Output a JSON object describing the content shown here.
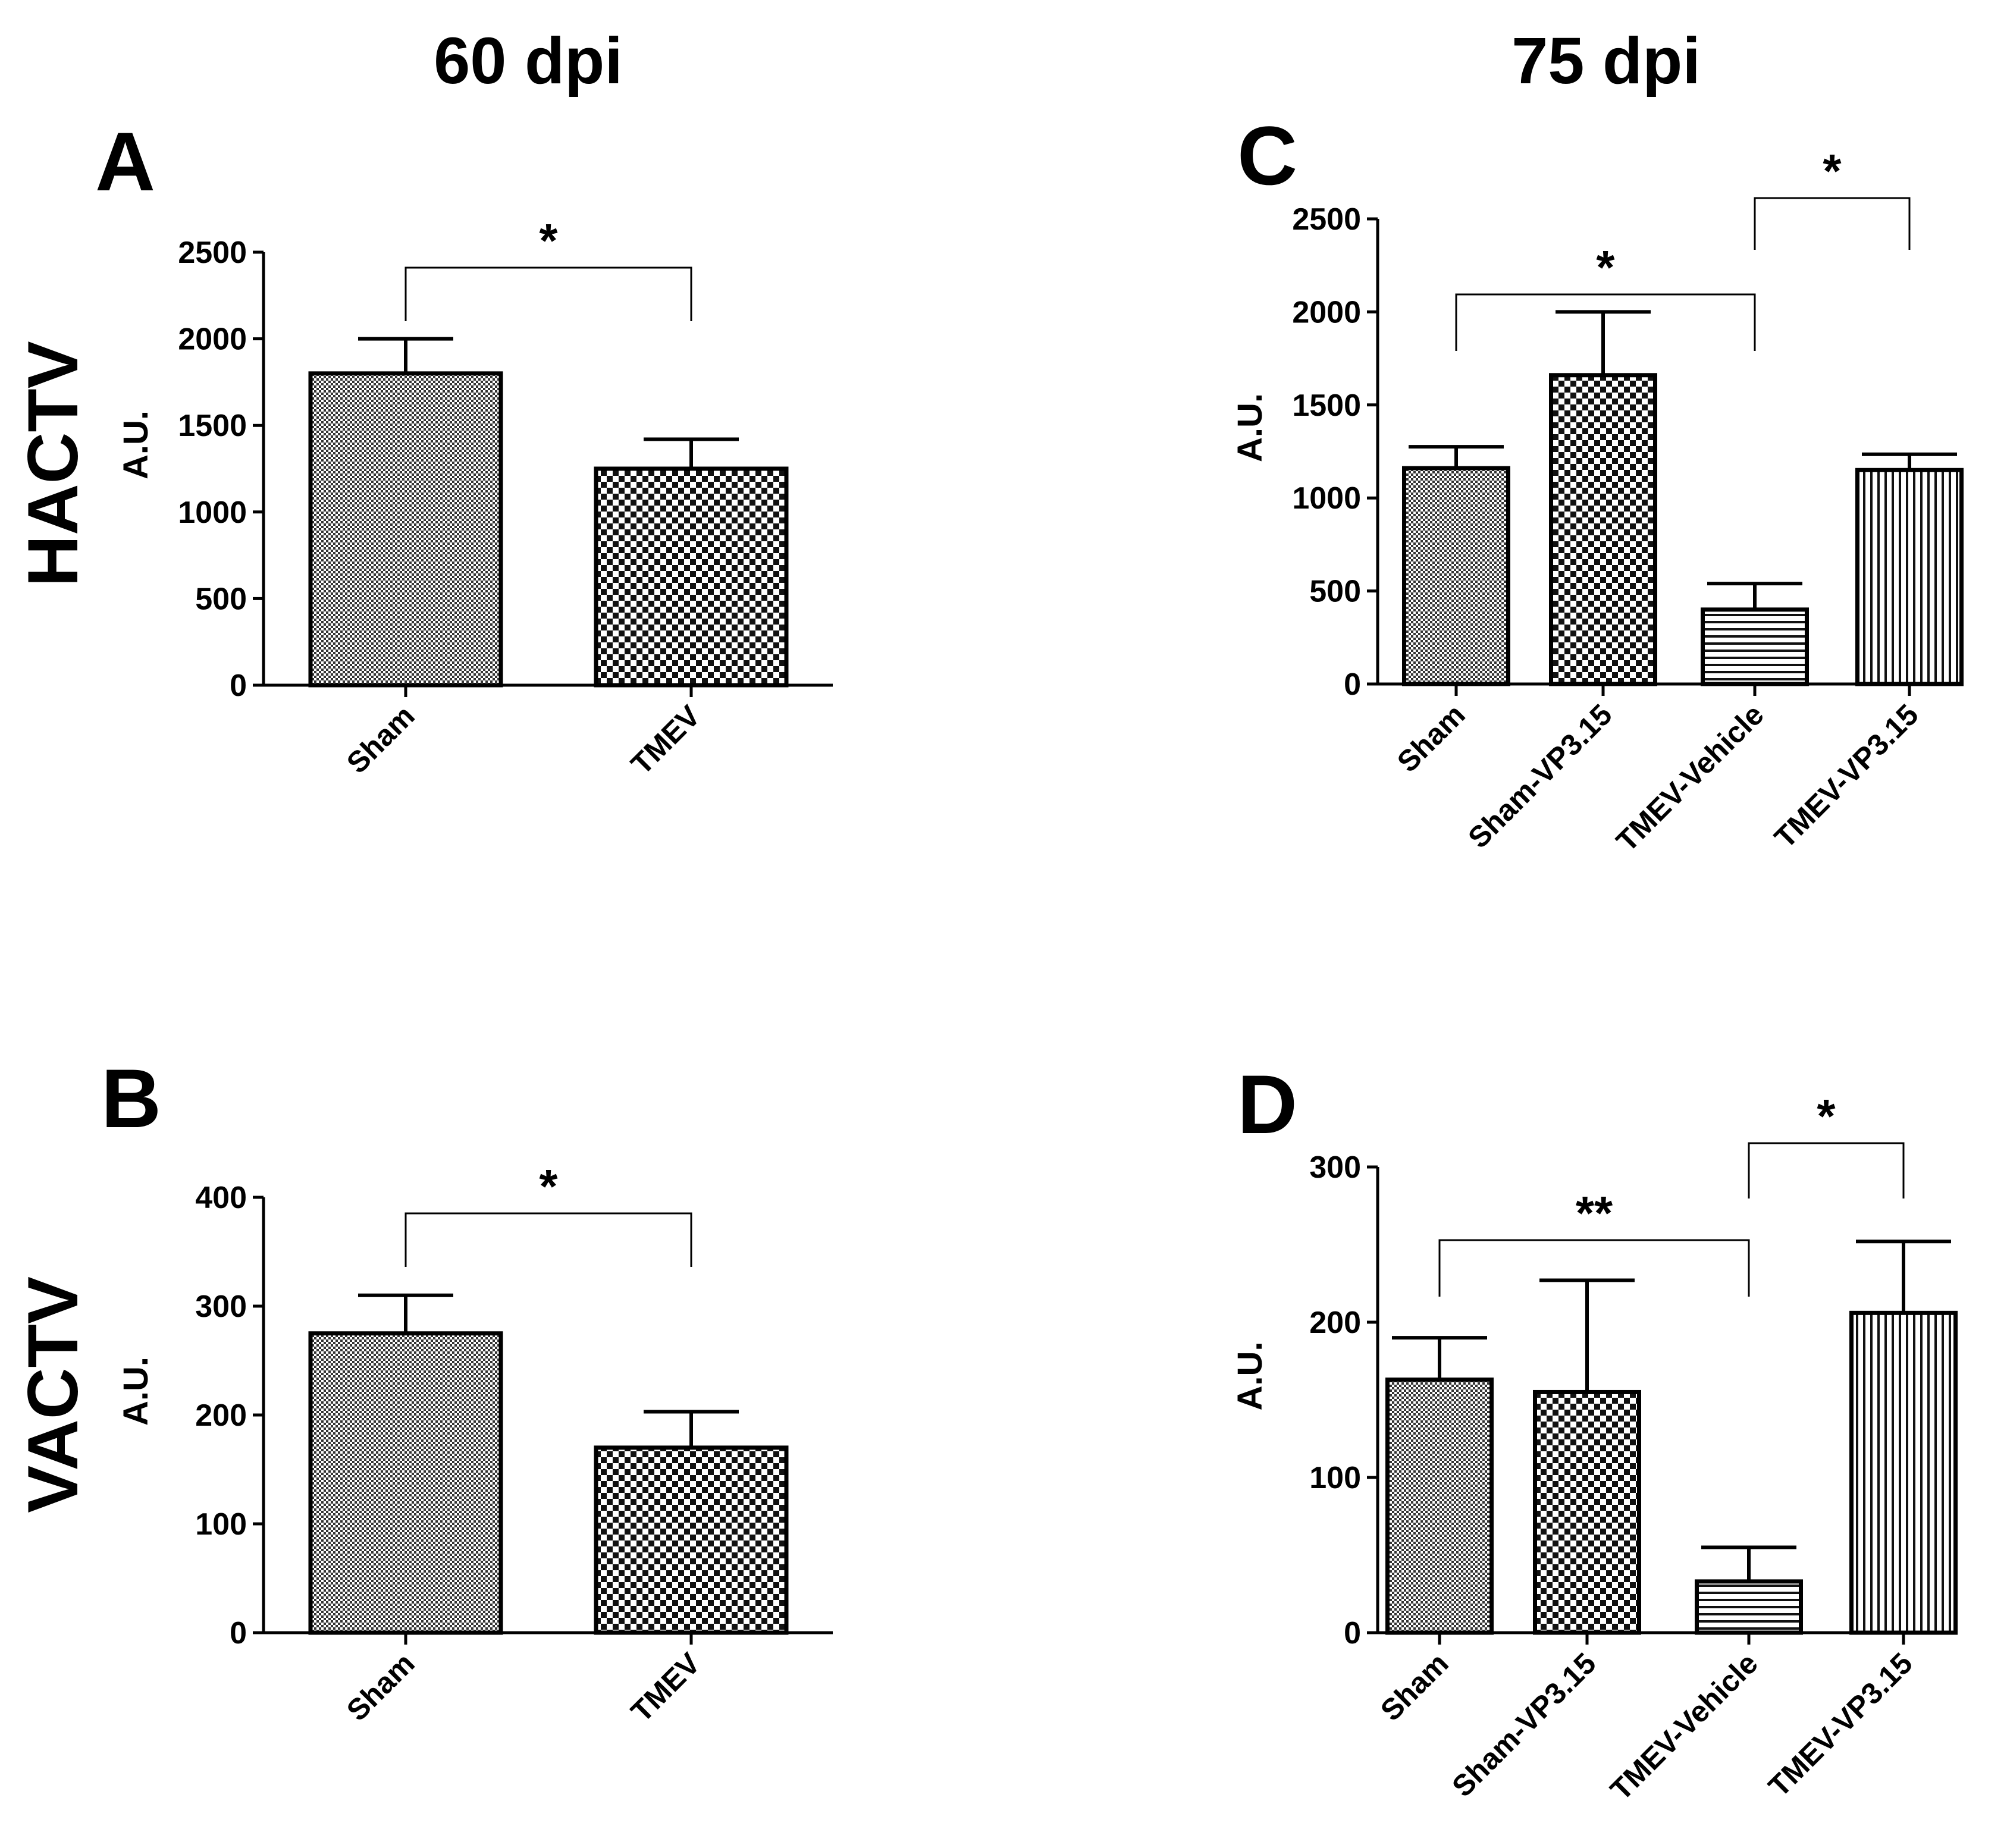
{
  "headers": {
    "left": "60 dpi",
    "right": "75 dpi"
  },
  "row_labels": {
    "top": "HACTV",
    "bottom": "VACTV"
  },
  "colors": {
    "bar_stroke": "#000000",
    "background": "#ffffff"
  },
  "chart_data": [
    {
      "id": "A",
      "type": "bar",
      "panel_label": "A",
      "ylabel": "A.U.",
      "ylim": [
        0,
        2500
      ],
      "yticks": [
        "0",
        "500",
        "1000",
        "1500",
        "2000",
        "2500"
      ],
      "categories": [
        "Sham",
        "TMEV"
      ],
      "values": [
        1800,
        1250
      ],
      "errors": [
        200,
        170
      ],
      "patterns": [
        "fine",
        "checker"
      ],
      "significance": [
        {
          "from": 0,
          "to": 1,
          "label": "*"
        }
      ]
    },
    {
      "id": "B",
      "type": "bar",
      "panel_label": "B",
      "ylabel": "A.U.",
      "ylim": [
        0,
        400
      ],
      "yticks": [
        "0",
        "100",
        "200",
        "300",
        "400"
      ],
      "categories": [
        "Sham",
        "TMEV"
      ],
      "values": [
        275,
        170
      ],
      "errors": [
        35,
        33
      ],
      "patterns": [
        "fine",
        "checker"
      ],
      "significance": [
        {
          "from": 0,
          "to": 1,
          "label": "*"
        }
      ]
    },
    {
      "id": "C",
      "type": "bar",
      "panel_label": "C",
      "ylabel": "A.U.",
      "ylim": [
        0,
        2500
      ],
      "yticks": [
        "0",
        "500",
        "1000",
        "1500",
        "2000",
        "2500"
      ],
      "categories": [
        "Sham",
        "Sham-VP3.15",
        "TMEV-Vehicle",
        "TMEV-VP3.15"
      ],
      "values": [
        1160,
        1660,
        400,
        1150
      ],
      "errors": [
        115,
        340,
        140,
        85
      ],
      "patterns": [
        "fine",
        "checker",
        "hlines",
        "vlines"
      ],
      "significance": [
        {
          "from": 0,
          "to": 2,
          "label": "*"
        },
        {
          "from": 2,
          "to": 3,
          "label": "*"
        }
      ]
    },
    {
      "id": "D",
      "type": "bar",
      "panel_label": "D",
      "ylabel": "A.U.",
      "ylim": [
        0,
        300
      ],
      "yticks": [
        "0",
        "100",
        "200",
        "300"
      ],
      "categories": [
        "Sham",
        "Sham-VP3.15",
        "TMEV-Vehicle",
        "TMEV-VP3.15"
      ],
      "values": [
        163,
        155,
        33,
        206
      ],
      "errors": [
        27,
        72,
        22,
        46
      ],
      "patterns": [
        "fine",
        "checker",
        "hlines",
        "vlines"
      ],
      "significance": [
        {
          "from": 0,
          "to": 2,
          "label": "**"
        },
        {
          "from": 2,
          "to": 3,
          "label": "*"
        }
      ]
    }
  ]
}
